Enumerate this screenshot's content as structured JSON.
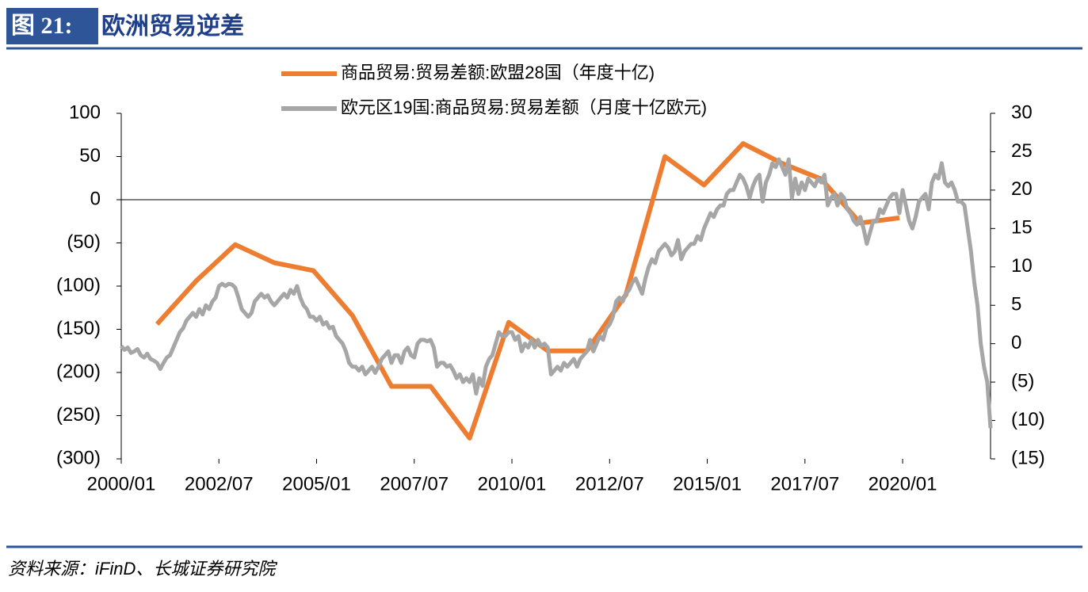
{
  "chart_data": {
    "type": "line",
    "figure_label": "图 21:",
    "title": "欧洲贸易逆差",
    "source": "资料来源：iFinD、长城证券研究院",
    "xlim": [
      "2000/01",
      "2022/04"
    ],
    "xticks": [
      "2000/01",
      "2002/07",
      "2005/01",
      "2007/07",
      "2010/01",
      "2012/07",
      "2015/01",
      "2017/07",
      "2020/01"
    ],
    "ylim": [
      -300,
      100
    ],
    "yticks": [
      {
        "value": -300,
        "label": "(300)"
      },
      {
        "value": -250,
        "label": "(250)"
      },
      {
        "value": -200,
        "label": "(200)"
      },
      {
        "value": -150,
        "label": "(150)"
      },
      {
        "value": -100,
        "label": "(100)"
      },
      {
        "value": -50,
        "label": "(50)"
      },
      0,
      50,
      100
    ],
    "y2lim": [
      -15,
      30
    ],
    "y2ticks": [
      {
        "value": -15,
        "label": "(15)"
      },
      {
        "value": -10,
        "label": "(10)"
      },
      {
        "value": -5,
        "label": "(5)"
      },
      0,
      5,
      10,
      15,
      20,
      25,
      30
    ],
    "negative_tick_color": "#e00000",
    "zero_line": true,
    "series": [
      {
        "name": "商品贸易:贸易差额:欧盟28国（年度十亿)",
        "color": "#ed7d31",
        "x": [
          "2000/12",
          "2001/12",
          "2002/12",
          "2003/12",
          "2004/12",
          "2005/12",
          "2006/12",
          "2007/12",
          "2008/12",
          "2009/12",
          "2010/12",
          "2011/12",
          "2012/12",
          "2013/12",
          "2014/12",
          "2015/12",
          "2016/12",
          "2017/12",
          "2018/12",
          "2019/12"
        ],
        "values": [
          -144,
          -94,
          -52,
          -73,
          -82,
          -134,
          -216,
          -216,
          -276,
          -142,
          -175,
          -175,
          -110,
          50,
          17,
          65,
          42,
          24,
          -27,
          -21
        ]
      },
      {
        "name": "欧元区19国:商品贸易:贸易差额（月度十亿欧元)",
        "color": "#a6a6a6",
        "axis": "y2",
        "x": [
          "2000/01",
          "2000/02",
          "2000/03",
          "2000/04",
          "2000/05",
          "2000/06",
          "2000/07",
          "2000/08",
          "2000/09",
          "2000/10",
          "2000/11",
          "2000/12",
          "2001/01",
          "2001/02",
          "2001/03",
          "2001/04",
          "2001/05",
          "2001/06",
          "2001/07",
          "2001/08",
          "2001/09",
          "2001/10",
          "2001/11",
          "2001/12",
          "2002/01",
          "2002/02",
          "2002/03",
          "2002/04",
          "2002/05",
          "2002/06",
          "2002/07",
          "2002/08",
          "2002/09",
          "2002/10",
          "2002/11",
          "2002/12",
          "2003/01",
          "2003/02",
          "2003/03",
          "2003/04",
          "2003/05",
          "2003/06",
          "2003/07",
          "2003/08",
          "2003/09",
          "2003/10",
          "2003/11",
          "2003/12",
          "2004/01",
          "2004/02",
          "2004/03",
          "2004/04",
          "2004/05",
          "2004/06",
          "2004/07",
          "2004/08",
          "2004/09",
          "2004/10",
          "2004/11",
          "2004/12",
          "2005/01",
          "2005/02",
          "2005/03",
          "2005/04",
          "2005/05",
          "2005/06",
          "2005/07",
          "2005/08",
          "2005/09",
          "2005/10",
          "2005/11",
          "2005/12",
          "2006/01",
          "2006/02",
          "2006/03",
          "2006/04",
          "2006/05",
          "2006/06",
          "2006/07",
          "2006/08",
          "2006/09",
          "2006/10",
          "2006/11",
          "2006/12",
          "2007/01",
          "2007/02",
          "2007/03",
          "2007/04",
          "2007/05",
          "2007/06",
          "2007/07",
          "2007/08",
          "2007/09",
          "2007/10",
          "2007/11",
          "2007/12",
          "2008/01",
          "2008/02",
          "2008/03",
          "2008/04",
          "2008/05",
          "2008/06",
          "2008/07",
          "2008/08",
          "2008/09",
          "2008/10",
          "2008/11",
          "2008/12",
          "2009/01",
          "2009/02",
          "2009/03",
          "2009/04",
          "2009/05",
          "2009/06",
          "2009/07",
          "2009/08",
          "2009/09",
          "2009/10",
          "2009/11",
          "2009/12",
          "2010/01",
          "2010/02",
          "2010/03",
          "2010/04",
          "2010/05",
          "2010/06",
          "2010/07",
          "2010/08",
          "2010/09",
          "2010/10",
          "2010/11",
          "2010/12",
          "2011/01",
          "2011/02",
          "2011/03",
          "2011/04",
          "2011/05",
          "2011/06",
          "2011/07",
          "2011/08",
          "2011/09",
          "2011/10",
          "2011/11",
          "2011/12",
          "2012/01",
          "2012/02",
          "2012/03",
          "2012/04",
          "2012/05",
          "2012/06",
          "2012/07",
          "2012/08",
          "2012/09",
          "2012/10",
          "2012/11",
          "2012/12",
          "2013/01",
          "2013/02",
          "2013/03",
          "2013/04",
          "2013/05",
          "2013/06",
          "2013/07",
          "2013/08",
          "2013/09",
          "2013/10",
          "2013/11",
          "2013/12",
          "2014/01",
          "2014/02",
          "2014/03",
          "2014/04",
          "2014/05",
          "2014/06",
          "2014/07",
          "2014/08",
          "2014/09",
          "2014/10",
          "2014/11",
          "2014/12",
          "2015/01",
          "2015/02",
          "2015/03",
          "2015/04",
          "2015/05",
          "2015/06",
          "2015/07",
          "2015/08",
          "2015/09",
          "2015/10",
          "2015/11",
          "2015/12",
          "2016/01",
          "2016/02",
          "2016/03",
          "2016/04",
          "2016/05",
          "2016/06",
          "2016/07",
          "2016/08",
          "2016/09",
          "2016/10",
          "2016/11",
          "2016/12",
          "2017/01",
          "2017/02",
          "2017/03",
          "2017/04",
          "2017/05",
          "2017/06",
          "2017/07",
          "2017/08",
          "2017/09",
          "2017/10",
          "2017/11",
          "2017/12",
          "2018/01",
          "2018/02",
          "2018/03",
          "2018/04",
          "2018/05",
          "2018/06",
          "2018/07",
          "2018/08",
          "2018/09",
          "2018/10",
          "2018/11",
          "2018/12",
          "2019/01",
          "2019/02",
          "2019/03",
          "2019/04",
          "2019/05",
          "2019/06",
          "2019/07",
          "2019/08",
          "2019/09",
          "2019/10",
          "2019/11",
          "2019/12",
          "2020/01",
          "2020/02",
          "2020/03",
          "2020/04",
          "2020/05",
          "2020/06",
          "2020/07",
          "2020/08",
          "2020/09",
          "2020/10",
          "2020/11",
          "2020/12",
          "2021/01",
          "2021/02",
          "2021/03",
          "2021/04",
          "2021/05",
          "2021/06",
          "2021/07",
          "2021/08",
          "2021/09",
          "2021/10",
          "2021/11",
          "2021/12",
          "2022/01",
          "2022/02",
          "2022/03",
          "2022/04"
        ],
        "values": [
          -0.3,
          -0.8,
          -0.5,
          -1.2,
          -1.0,
          -0.7,
          -1.5,
          -1.8,
          -1.3,
          -2.0,
          -2.2,
          -2.5,
          -3.3,
          -2.5,
          -1.8,
          -1.5,
          -0.5,
          0.5,
          1.5,
          2.0,
          3.0,
          3.5,
          4.0,
          3.5,
          4.5,
          3.8,
          5.0,
          4.5,
          5.5,
          6.0,
          7.5,
          7.8,
          7.5,
          7.8,
          7.7,
          7.3,
          6.0,
          4.5,
          4.0,
          3.5,
          4.0,
          5.5,
          6.0,
          6.5,
          6.0,
          6.3,
          5.5,
          5.0,
          5.5,
          6.0,
          6.5,
          6.0,
          7.0,
          6.5,
          7.5,
          6.0,
          5.0,
          4.5,
          3.5,
          3.5,
          3.0,
          3.5,
          2.5,
          2.8,
          2.0,
          2.2,
          1.0,
          0.5,
          0.0,
          -1.0,
          -2.5,
          -3.0,
          -3.0,
          -3.5,
          -3.0,
          -4.0,
          -3.5,
          -3.0,
          -3.8,
          -3.0,
          -2.0,
          -1.5,
          -1.0,
          -2.5,
          -1.5,
          -1.5,
          -2.5,
          -1.0,
          -0.5,
          -1.5,
          -1.8,
          0.0,
          0.5,
          0.5,
          0.3,
          0.5,
          -0.5,
          -3.0,
          -2.5,
          -2.5,
          -3.0,
          -2.8,
          -3.5,
          -4.5,
          -4.0,
          -5.0,
          -4.5,
          -5.0,
          -4.0,
          -6.5,
          -4.5,
          -5.5,
          -3.0,
          -2.0,
          -1.5,
          0.0,
          1.5,
          1.0,
          1.0,
          1.5,
          1.5,
          0.5,
          1.0,
          -1.0,
          0.0,
          -0.5,
          0.5,
          -0.5,
          0.5,
          -0.3,
          0.0,
          -0.5,
          -4.0,
          -3.5,
          -3.0,
          -3.5,
          -2.5,
          -3.0,
          -2.5,
          -2.0,
          -3.0,
          -2.0,
          -1.5,
          -1.0,
          0.5,
          -1.0,
          0.0,
          1.0,
          0.5,
          2.0,
          2.5,
          3.5,
          5.5,
          6.0,
          5.5,
          6.5,
          7.0,
          8.0,
          8.5,
          7.5,
          6.5,
          8.5,
          10.0,
          11.0,
          10.5,
          12.0,
          12.5,
          13.0,
          12.5,
          11.5,
          12.0,
          13.5,
          11.0,
          12.0,
          12.5,
          13.0,
          13.0,
          14.0,
          13.5,
          15.0,
          16.0,
          17.0,
          16.5,
          17.5,
          18.0,
          18.0,
          19.5,
          20.0,
          20.0,
          21.0,
          22.0,
          21.5,
          20.5,
          19.0,
          20.5,
          21.5,
          22.0,
          18.5,
          21.0,
          22.0,
          23.5,
          23.0,
          24.0,
          23.0,
          22.0,
          24.0,
          19.0,
          21.5,
          19.5,
          21.0,
          20.0,
          21.5,
          21.0,
          20.5,
          21.5,
          21.0,
          22.0,
          18.0,
          19.0,
          19.5,
          18.0,
          19.5,
          19.0,
          17.5,
          17.0,
          16.0,
          15.5,
          16.5,
          15.0,
          13.0,
          14.5,
          16.0,
          16.0,
          17.5,
          17.0,
          18.0,
          19.0,
          19.5,
          19.5,
          17.0,
          20.0,
          18.0,
          16.0,
          15.0,
          16.5,
          18.5,
          19.0,
          19.5,
          17.5,
          21.0,
          22.0,
          21.5,
          23.5,
          21.0,
          20.5,
          21.0,
          20.0,
          18.5,
          18.5,
          18.0,
          15.0,
          12.0,
          8.0,
          5.0,
          0.0,
          -3.0,
          -5.0,
          -11.0
        ]
      }
    ]
  }
}
